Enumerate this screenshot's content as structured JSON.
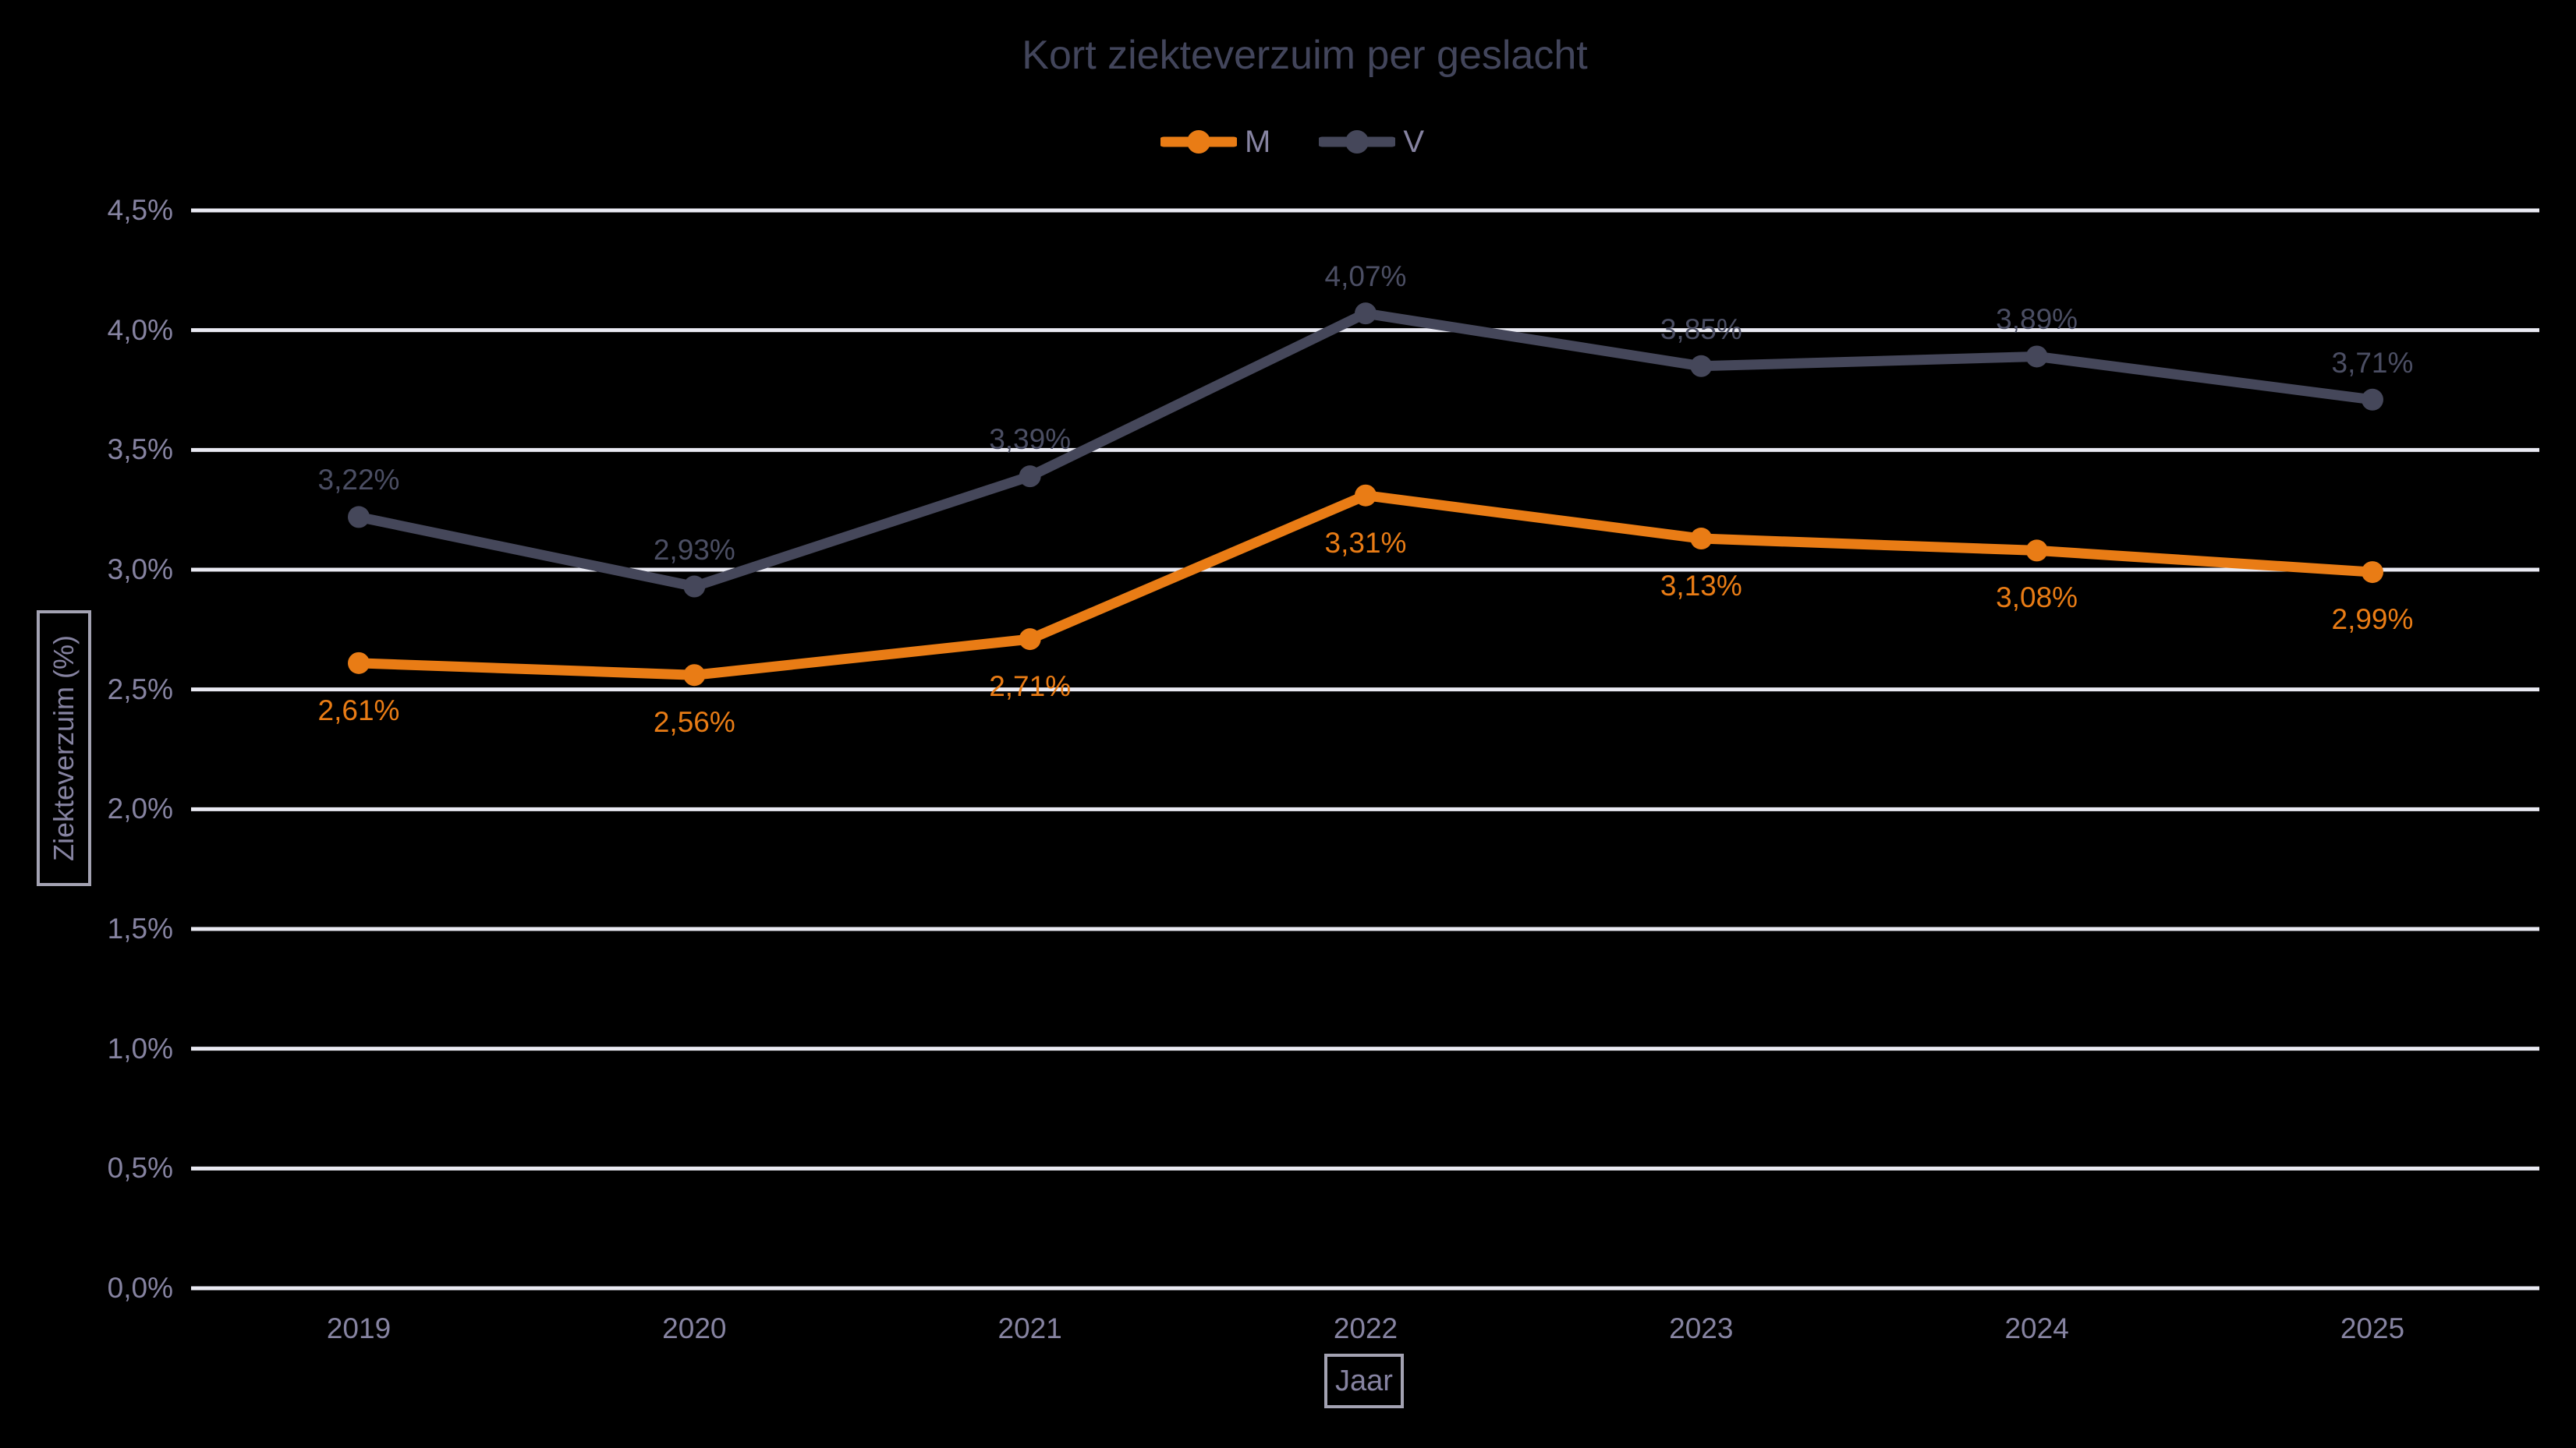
{
  "chart_data": {
    "type": "line",
    "title": "Kort ziekteverzuim per geslacht",
    "xlabel": "Jaar",
    "ylabel": "Ziekteverzuim (%)",
    "categories": [
      "2019",
      "2020",
      "2021",
      "2022",
      "2023",
      "2024",
      "2025"
    ],
    "series": [
      {
        "name": "M",
        "color": "#E97C15",
        "label_color": "#E97C15",
        "values": [
          2.61,
          2.56,
          2.71,
          3.31,
          3.13,
          3.08,
          2.99
        ],
        "labels": [
          "2,61%",
          "2,56%",
          "2,71%",
          "3,31%",
          "3,13%",
          "3,08%",
          "2,99%"
        ],
        "label_position": "below"
      },
      {
        "name": "V",
        "color": "#45475A",
        "label_color": "#4B4E63",
        "values": [
          3.22,
          2.93,
          3.39,
          4.07,
          3.85,
          3.89,
          3.71
        ],
        "labels": [
          "3,22%",
          "2,93%",
          "3,39%",
          "4,07%",
          "3,85%",
          "3,89%",
          "3,71%"
        ],
        "label_position": "above"
      }
    ],
    "ylim": [
      0,
      4.5
    ],
    "ytick_step": 0.5,
    "ytick_labels": [
      "0,0%",
      "0,5%",
      "1,0%",
      "1,5%",
      "2,0%",
      "2,5%",
      "3,0%",
      "3,5%",
      "4,0%",
      "4,5%"
    ],
    "grid": "horizontal",
    "legend_position": "top",
    "decimal_separator": ","
  },
  "style": {
    "background": "#000000",
    "gridline_color": "#E9E9F2",
    "title_color": "#42455B",
    "axis_text_color": "#8683A1",
    "axis_box_border_color": "#A3A2B2"
  }
}
